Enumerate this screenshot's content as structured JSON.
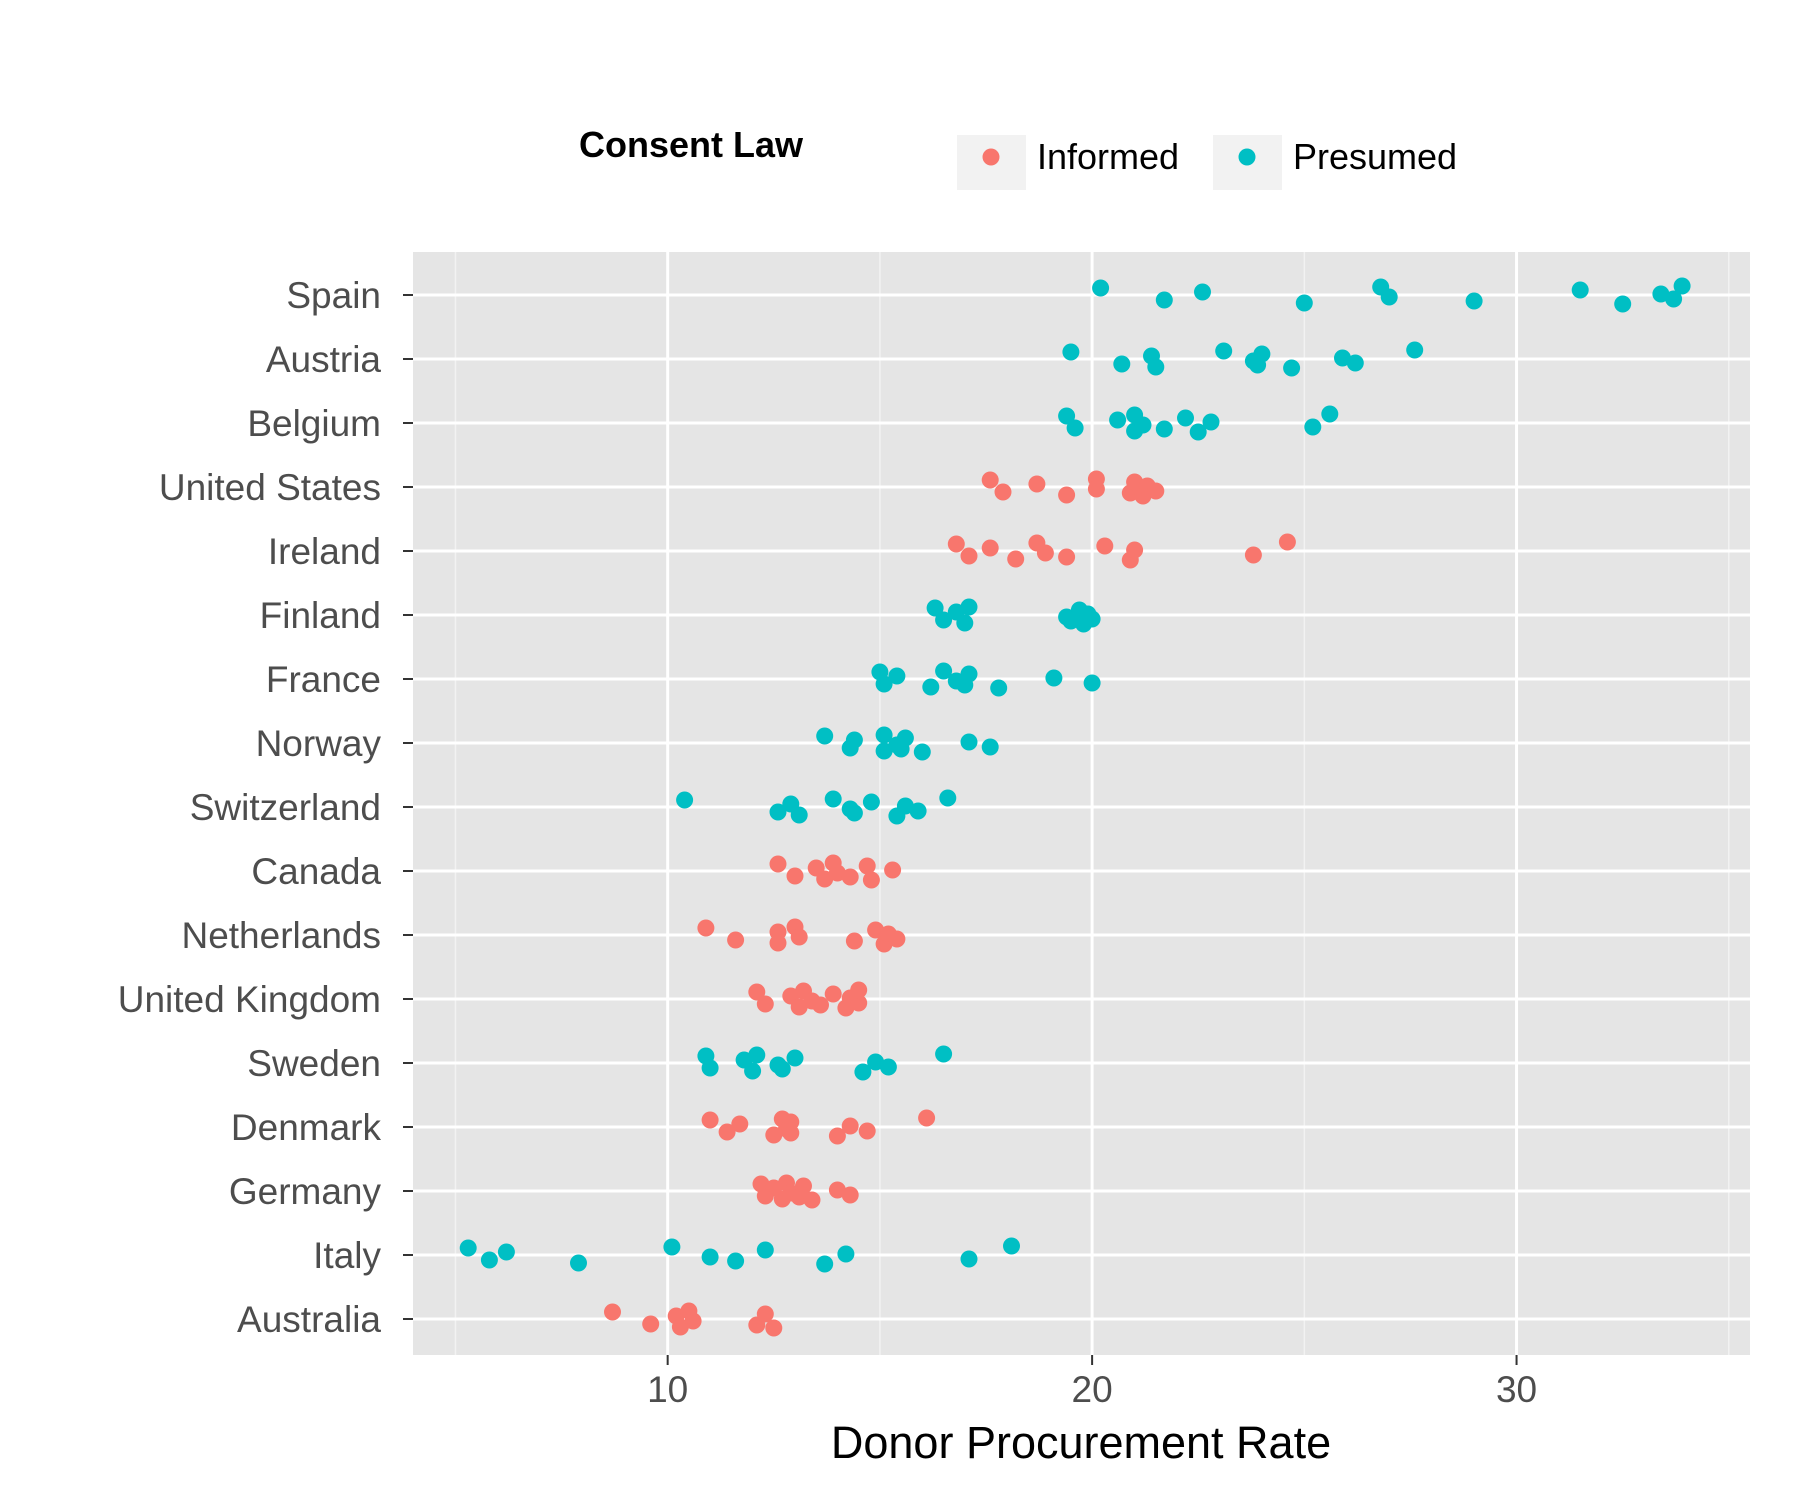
{
  "chart_data": {
    "type": "scatter",
    "title": "",
    "xlabel": "Donor Procurement Rate",
    "ylabel": "",
    "xlim": [
      4,
      35.5
    ],
    "xticks": [
      10,
      20,
      30
    ],
    "grid": true,
    "legend": {
      "title": "Consent Law",
      "placement": "top",
      "entries": [
        {
          "name": "Informed",
          "color": "#F8766D"
        },
        {
          "name": "Presumed",
          "color": "#00BFC4"
        }
      ]
    },
    "categories": [
      "Australia",
      "Italy",
      "Germany",
      "Denmark",
      "Sweden",
      "United Kingdom",
      "Netherlands",
      "Canada",
      "Switzerland",
      "Norway",
      "France",
      "Finland",
      "Ireland",
      "United States",
      "Belgium",
      "Austria",
      "Spain"
    ],
    "points": {
      "Spain": {
        "law": "Presumed",
        "values": [
          20.2,
          21.7,
          22.6,
          25.0,
          26.8,
          27.0,
          29.0,
          31.5,
          32.5,
          33.4,
          33.7,
          33.9
        ]
      },
      "Austria": {
        "law": "Presumed",
        "values": [
          19.5,
          20.7,
          21.4,
          21.5,
          23.1,
          23.8,
          23.9,
          24.0,
          24.7,
          25.9,
          26.2,
          27.6
        ]
      },
      "Belgium": {
        "law": "Presumed",
        "values": [
          19.4,
          19.6,
          20.6,
          21.0,
          21.0,
          21.2,
          21.7,
          22.2,
          22.5,
          22.8,
          25.2,
          25.6
        ]
      },
      "United States": {
        "law": "Informed",
        "values": [
          17.6,
          17.9,
          18.7,
          19.4,
          20.1,
          20.1,
          20.9,
          21.0,
          21.2,
          21.3,
          21.5
        ]
      },
      "Ireland": {
        "law": "Informed",
        "values": [
          16.8,
          17.1,
          17.6,
          18.2,
          18.7,
          18.9,
          19.4,
          20.3,
          20.9,
          21.0,
          23.8,
          24.6
        ]
      },
      "Finland": {
        "law": "Presumed",
        "values": [
          16.3,
          16.5,
          16.8,
          17.0,
          17.1,
          19.4,
          19.5,
          19.7,
          19.8,
          19.9,
          20.0
        ]
      },
      "France": {
        "law": "Presumed",
        "values": [
          15.0,
          15.1,
          15.4,
          16.2,
          16.5,
          16.8,
          17.0,
          17.1,
          17.8,
          19.1,
          20.0
        ]
      },
      "Norway": {
        "law": "Presumed",
        "values": [
          13.7,
          14.3,
          14.4,
          15.1,
          15.1,
          15.4,
          15.5,
          15.6,
          16.0,
          17.1,
          17.6
        ]
      },
      "Switzerland": {
        "law": "Presumed",
        "values": [
          10.4,
          12.6,
          12.9,
          13.1,
          13.9,
          14.3,
          14.4,
          14.8,
          15.4,
          15.6,
          15.9,
          16.6
        ]
      },
      "Canada": {
        "law": "Informed",
        "values": [
          12.6,
          13.0,
          13.5,
          13.7,
          13.9,
          14.0,
          14.3,
          14.7,
          14.8,
          15.3
        ]
      },
      "Netherlands": {
        "law": "Informed",
        "values": [
          10.9,
          11.6,
          12.6,
          12.6,
          13.0,
          13.1,
          14.4,
          14.9,
          15.1,
          15.2,
          15.4
        ]
      },
      "United Kingdom": {
        "law": "Informed",
        "values": [
          12.1,
          12.3,
          12.9,
          13.1,
          13.2,
          13.4,
          13.6,
          13.9,
          14.2,
          14.3,
          14.5,
          14.5
        ]
      },
      "Sweden": {
        "law": "Presumed",
        "values": [
          10.9,
          11.0,
          11.8,
          12.0,
          12.1,
          12.6,
          12.7,
          13.0,
          14.6,
          14.9,
          15.2,
          16.5
        ]
      },
      "Denmark": {
        "law": "Informed",
        "values": [
          11.0,
          11.4,
          11.7,
          12.5,
          12.7,
          12.8,
          12.9,
          12.9,
          14.0,
          14.3,
          14.7,
          16.1
        ]
      },
      "Germany": {
        "law": "Informed",
        "values": [
          12.2,
          12.3,
          12.5,
          12.7,
          12.8,
          12.9,
          13.1,
          13.2,
          13.4,
          14.0,
          14.3
        ]
      },
      "Italy": {
        "law": "Presumed",
        "values": [
          5.3,
          5.8,
          6.2,
          7.9,
          10.1,
          11.0,
          11.6,
          12.3,
          13.7,
          14.2,
          17.1,
          18.1
        ]
      },
      "Australia": {
        "law": "Informed",
        "values": [
          8.7,
          9.6,
          10.2,
          10.3,
          10.5,
          10.6,
          12.1,
          12.3,
          12.5
        ]
      }
    }
  }
}
